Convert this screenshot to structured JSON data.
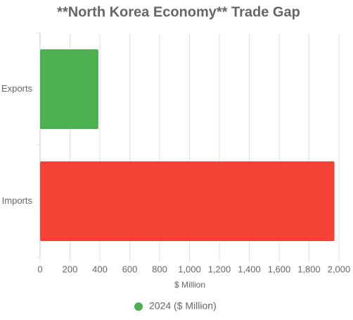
{
  "chart_data": {
    "type": "hbar",
    "title": "**North Korea Economy** Trade Gap",
    "categories": [
      "Exports",
      "Imports"
    ],
    "series": [
      {
        "name": "2024 ($ Million)",
        "color": "#4caf50",
        "values": [
          390,
          1970
        ]
      }
    ],
    "colors": [
      "#4caf50",
      "#f44336"
    ],
    "xlabel": "$ Million",
    "xlim": [
      0,
      2000
    ],
    "xticks": [
      0,
      200,
      400,
      600,
      800,
      {
        "value": 1000,
        "label": "1,000"
      },
      {
        "value": 1200,
        "label": "1,200"
      },
      {
        "value": 1400,
        "label": "1,400"
      },
      {
        "value": 1600,
        "label": "1,600"
      },
      {
        "value": 1800,
        "label": "1,800"
      },
      {
        "value": 2000,
        "label": "2,000"
      }
    ],
    "grid": true,
    "legend": "bottom"
  }
}
